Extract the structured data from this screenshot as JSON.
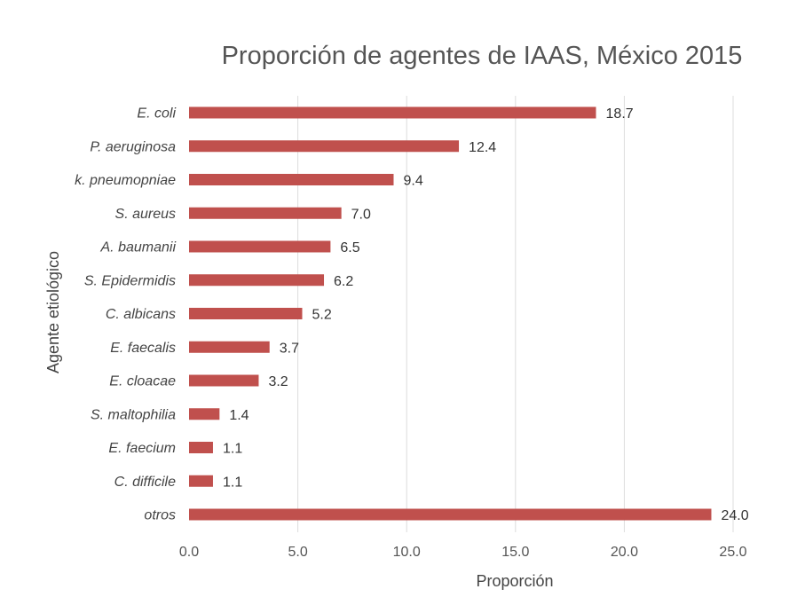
{
  "chart_data": {
    "type": "bar",
    "orientation": "horizontal",
    "title": "Proporción de agentes de IAAS, México 2015",
    "xlabel": "Proporción",
    "ylabel": "Agente etiológico",
    "categories": [
      "E. coli",
      "P. aeruginosa",
      "k. pneumopniae",
      "S. aureus",
      "A. baumanii",
      "S. Epidermidis",
      "C. albicans",
      "E. faecalis",
      "E. cloacae",
      "S. maltophilia",
      "E. faecium",
      "C. difficile",
      "otros"
    ],
    "values": [
      18.7,
      12.4,
      9.4,
      7.0,
      6.5,
      6.2,
      5.2,
      3.7,
      3.2,
      1.4,
      1.1,
      1.1,
      24.0
    ],
    "value_labels": [
      "18.7",
      "12.4",
      "9.4",
      "7.0",
      "6.5",
      "6.2",
      "5.2",
      "3.7",
      "3.2",
      "1.4",
      "1.1",
      "1.1",
      "24.0"
    ],
    "xlim": [
      0,
      25
    ],
    "xticks": [
      "0.0",
      "5.0",
      "10.0",
      "15.0",
      "20.0",
      "25.0"
    ],
    "xtick_values": [
      0,
      5,
      10,
      15,
      20,
      25
    ],
    "grid": "vertical",
    "legend": "none",
    "bar_color": "#c0504d"
  }
}
